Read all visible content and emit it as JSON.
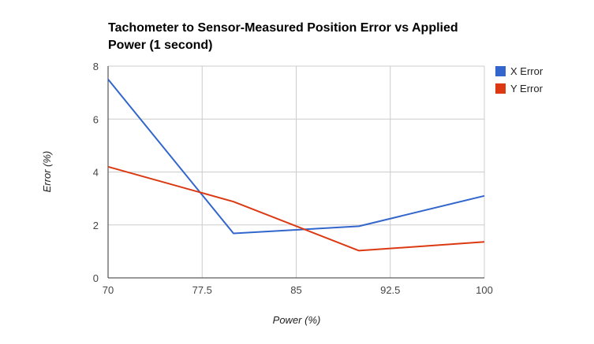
{
  "chart_data": {
    "type": "line",
    "title_lines": [
      "Tachometer to Sensor-Measured Position Error vs Applied",
      "Power (1 second)"
    ],
    "xlabel": "Power (%)",
    "ylabel": "Error (%)",
    "x": [
      70,
      80,
      90,
      100
    ],
    "xlim": [
      70,
      100
    ],
    "ylim": [
      0,
      8
    ],
    "x_ticks": [
      "70",
      "77.5",
      "85",
      "92.5",
      "100"
    ],
    "y_ticks": [
      "0",
      "2",
      "4",
      "6",
      "8"
    ],
    "grid": true,
    "legend_position": "right",
    "series": [
      {
        "name": "X Error",
        "color": "#3366cc",
        "values": [
          7.5,
          1.68,
          1.95,
          3.1
        ]
      },
      {
        "name": "Y Error",
        "color": "#dc3912",
        "values": [
          4.2,
          2.88,
          1.03,
          1.36
        ]
      }
    ]
  }
}
